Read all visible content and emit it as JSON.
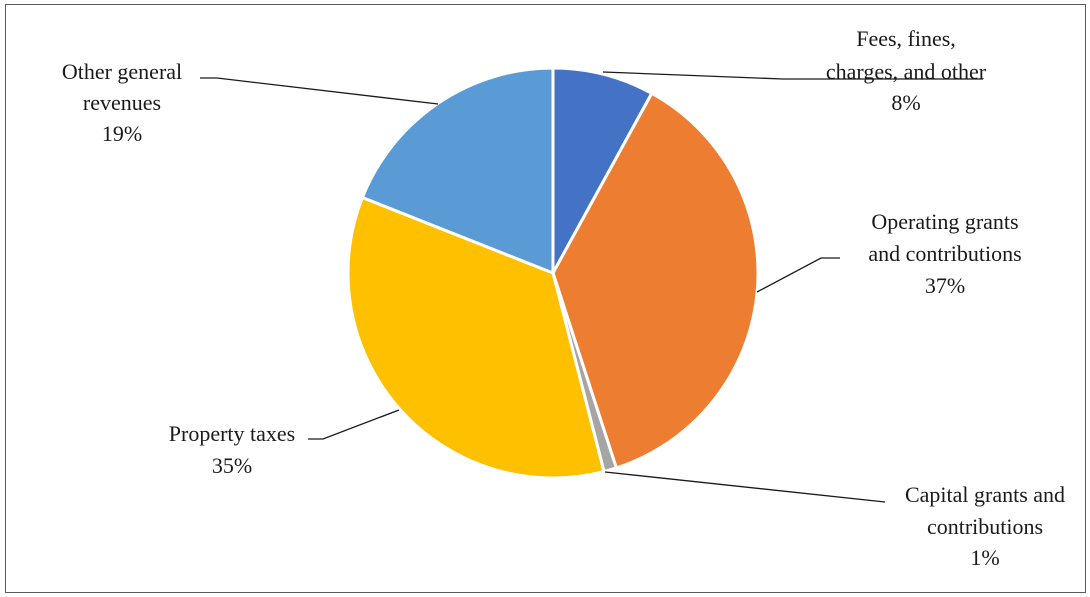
{
  "chart_data": {
    "type": "pie",
    "title": "",
    "slices": [
      {
        "label_lines": [
          "Fees, fines,",
          "charges, and other"
        ],
        "percent_label": "8%",
        "value": 8,
        "color": "#4472C4"
      },
      {
        "label_lines": [
          "Operating grants",
          "and contributions"
        ],
        "percent_label": "37%",
        "value": 37,
        "color": "#ED7D31"
      },
      {
        "label_lines": [
          "Capital grants and",
          "contributions"
        ],
        "percent_label": "1%",
        "value": 1,
        "color": "#A5A5A5"
      },
      {
        "label_lines": [
          "Property taxes"
        ],
        "percent_label": "35%",
        "value": 35,
        "color": "#FFC000"
      },
      {
        "label_lines": [
          "Other general",
          "revenues"
        ],
        "percent_label": "19%",
        "value": 19,
        "color": "#5B9BD5"
      }
    ],
    "legend": "none"
  }
}
